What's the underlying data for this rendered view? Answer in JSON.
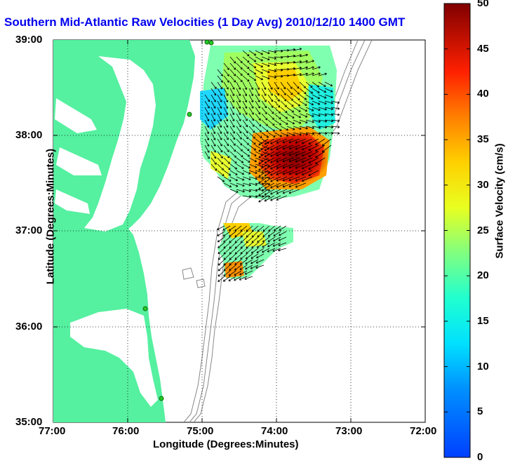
{
  "title": "Southern Mid-Atlantic Raw Velocities (1 Day Avg) 2010/12/10 1400 GMT",
  "map": {
    "xlabel": "Longitude (Degrees:Minutes)",
    "ylabel": "Latitude (Degrees:Minutes)",
    "x_ticks": [
      "77:00",
      "76:00",
      "75:00",
      "74:00",
      "73:00",
      "72:00"
    ],
    "y_ticks": [
      "39:00",
      "38:00",
      "37:00",
      "36:00",
      "35:00"
    ],
    "land_color": "#55f0a0",
    "water_color": "#ffffff",
    "bathymetry_color": "#888888",
    "arrow_color": "#000000",
    "station_color": "#22cc22"
  },
  "colorbar": {
    "label": "Surface Velocity (cm/s)",
    "ticks": [
      "0",
      "5",
      "10",
      "15",
      "20",
      "25",
      "30",
      "35",
      "40",
      "45",
      "50"
    ],
    "min": 0,
    "max": 50,
    "colormap": "jet"
  }
}
